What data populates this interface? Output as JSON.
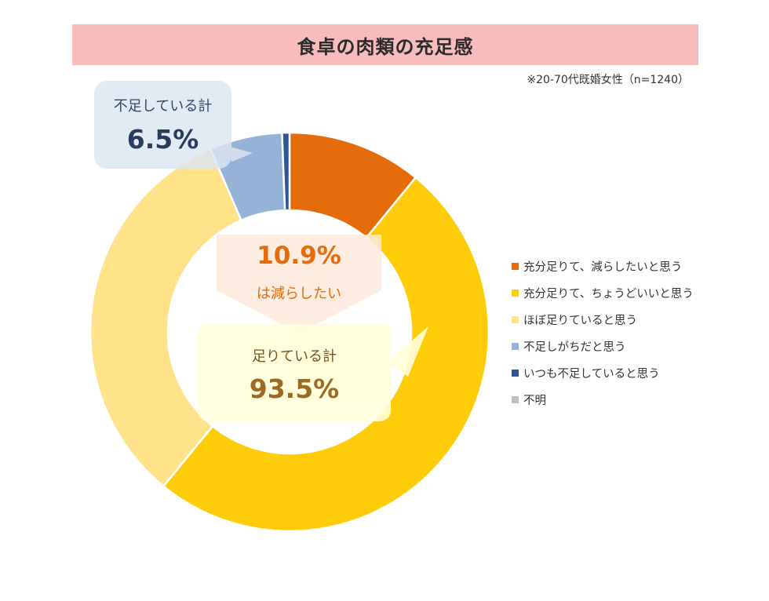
{
  "title": "食卓の肉類の充足感",
  "note": "※20-70代既婚女性（n=1240）",
  "callouts": {
    "shortage": {
      "label": "不足している計",
      "value": "6.5%"
    },
    "reduce": {
      "value": "10.9%",
      "label": "は減らしたい"
    },
    "enough": {
      "label": "足りている計",
      "value": "93.5%"
    }
  },
  "chart_data": {
    "type": "pie",
    "donut": true,
    "unit": "%",
    "legend_position": "right",
    "series": [
      {
        "name": "充分足りて、減らしたいと思う",
        "value": 10.9,
        "color": "#e46c0a"
      },
      {
        "name": "充分足りて、ちょうどいいと思う",
        "value": 50.0,
        "color": "#ffcc0a"
      },
      {
        "name": "ほぼ足りていると思う",
        "value": 32.6,
        "color": "#ffe28a"
      },
      {
        "name": "不足しがちだと思う",
        "value": 5.9,
        "color": "#95b3d7"
      },
      {
        "name": "いつも不足していると思う",
        "value": 0.6,
        "color": "#2f5597"
      },
      {
        "name": "不明",
        "value": 0.0,
        "color": "#bfbfbf"
      }
    ]
  }
}
